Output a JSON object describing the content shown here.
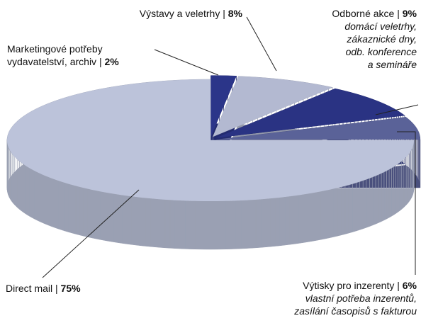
{
  "chart_data": {
    "type": "pie",
    "categories": [
      "Marketingové potřeby vydavatelství, archiv",
      "Výstavy a veletrhy",
      "Odborné akce",
      "Výtisky pro inzerenty",
      "Direct mail"
    ],
    "values": [
      2,
      8,
      9,
      6,
      75
    ],
    "value_labels": [
      "2%",
      "8%",
      "9%",
      "6%",
      "75%"
    ],
    "label_separator": "|",
    "descriptions": [
      null,
      null,
      [
        "domácí veletrhy,",
        "zákaznické dny,",
        "odb. konference",
        "a semináře"
      ],
      [
        "vlastní potřeba inzerentů,",
        "zasílání časopisů s fakturou"
      ],
      null
    ],
    "colors": [
      "#2b3589",
      "#b3b9d1",
      "#2a3383",
      "#5a6298",
      "#bcc3da"
    ]
  }
}
